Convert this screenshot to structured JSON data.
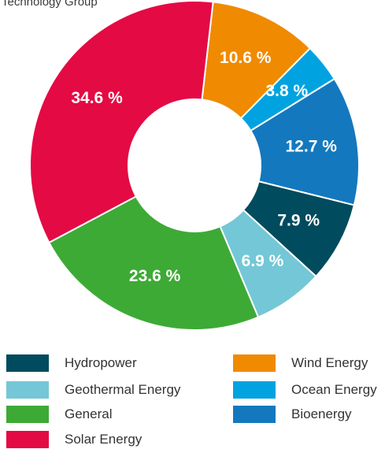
{
  "chart_data": {
    "type": "pie",
    "title": "Technology Group",
    "donut": true,
    "legend_placement": "bottom",
    "slices": [
      {
        "name": "Wind Energy",
        "value": 10.6,
        "label": "10.6 %",
        "color": "#F08A00"
      },
      {
        "name": "Ocean Energy",
        "value": 3.8,
        "label": "3.8 %",
        "color": "#00A3E0"
      },
      {
        "name": "Bioenergy",
        "value": 12.7,
        "label": "12.7 %",
        "color": "#1478BE"
      },
      {
        "name": "Hydropower",
        "value": 7.9,
        "label": "7.9 %",
        "color": "#004B5E"
      },
      {
        "name": "Geothermal Energy",
        "value": 6.9,
        "label": "6.9 %",
        "color": "#74C7D6"
      },
      {
        "name": "General",
        "value": 23.6,
        "label": "23.6 %",
        "color": "#3DAA35"
      },
      {
        "name": "Solar Energy",
        "value": 34.6,
        "label": "34.6 %",
        "color": "#E40A44"
      }
    ],
    "legend": [
      {
        "name": "Hydropower",
        "color": "#004B5E"
      },
      {
        "name": "Geothermal Energy",
        "color": "#74C7D6"
      },
      {
        "name": "General",
        "color": "#3DAA35"
      },
      {
        "name": "Solar Energy",
        "color": "#E40A44"
      },
      {
        "name": "Wind Energy",
        "color": "#F08A00"
      },
      {
        "name": "Ocean Energy",
        "color": "#00A3E0"
      },
      {
        "name": "Bioenergy",
        "color": "#1478BE"
      }
    ]
  }
}
